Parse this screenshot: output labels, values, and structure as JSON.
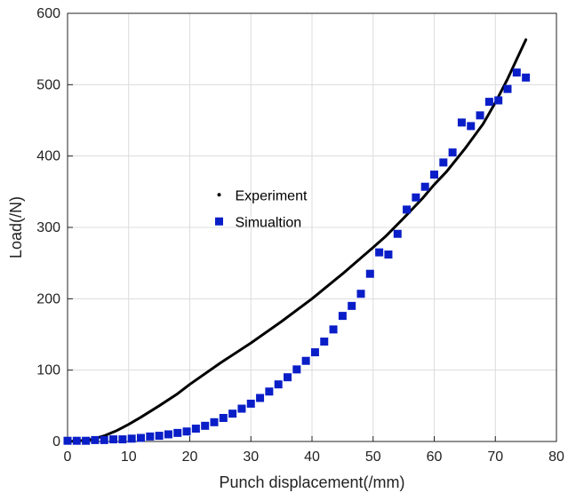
{
  "chart_data": {
    "type": "scatter",
    "xlabel": "Punch displacement(/mm)",
    "ylabel": "Load(/N)",
    "xlim": [
      0,
      80
    ],
    "ylim": [
      0,
      600
    ],
    "xticks": [
      0,
      10,
      20,
      30,
      40,
      50,
      60,
      70,
      80
    ],
    "yticks": [
      0,
      100,
      200,
      300,
      400,
      500,
      600
    ],
    "grid": true,
    "legend_position": "center-left",
    "series": [
      {
        "name": "Experiment",
        "style": "line",
        "color": "#000000",
        "x": [
          0,
          2,
          4,
          6,
          8,
          10,
          12,
          15,
          18,
          20,
          25,
          30,
          35,
          40,
          45,
          50,
          52,
          55,
          58,
          60,
          62,
          65,
          68,
          70,
          72,
          74,
          75
        ],
        "y": [
          0,
          1,
          3,
          8,
          15,
          24,
          34,
          50,
          67,
          80,
          110,
          138,
          168,
          200,
          235,
          272,
          287,
          313,
          340,
          360,
          378,
          410,
          445,
          475,
          508,
          545,
          563
        ]
      },
      {
        "name": "Simualtion",
        "style": "marker",
        "color": "#0a1ec8",
        "x": [
          0,
          1.5,
          3,
          4.5,
          6,
          7.5,
          9,
          10.5,
          12,
          13.5,
          15,
          16.5,
          18,
          19.5,
          21,
          22.5,
          24,
          25.5,
          27,
          28.5,
          30,
          31.5,
          33,
          34.5,
          36,
          37.5,
          39,
          40.5,
          42,
          43.5,
          45,
          46.5,
          48,
          49.5,
          51,
          52.5,
          54,
          55.5,
          57,
          58.5,
          60,
          61.5,
          63,
          64.5,
          66,
          67.5,
          69,
          70.5,
          72,
          73.5,
          75
        ],
        "y": [
          1,
          1,
          1,
          2,
          2,
          3,
          3,
          4,
          5,
          7,
          8,
          10,
          12,
          14,
          18,
          22,
          27,
          33,
          39,
          46,
          53,
          61,
          70,
          80,
          90,
          101,
          113,
          125,
          140,
          157,
          176,
          190,
          207,
          235,
          265,
          262,
          291,
          325,
          342,
          357,
          374,
          391,
          405,
          447,
          442,
          457,
          476,
          478,
          494,
          517,
          510
        ]
      }
    ]
  }
}
